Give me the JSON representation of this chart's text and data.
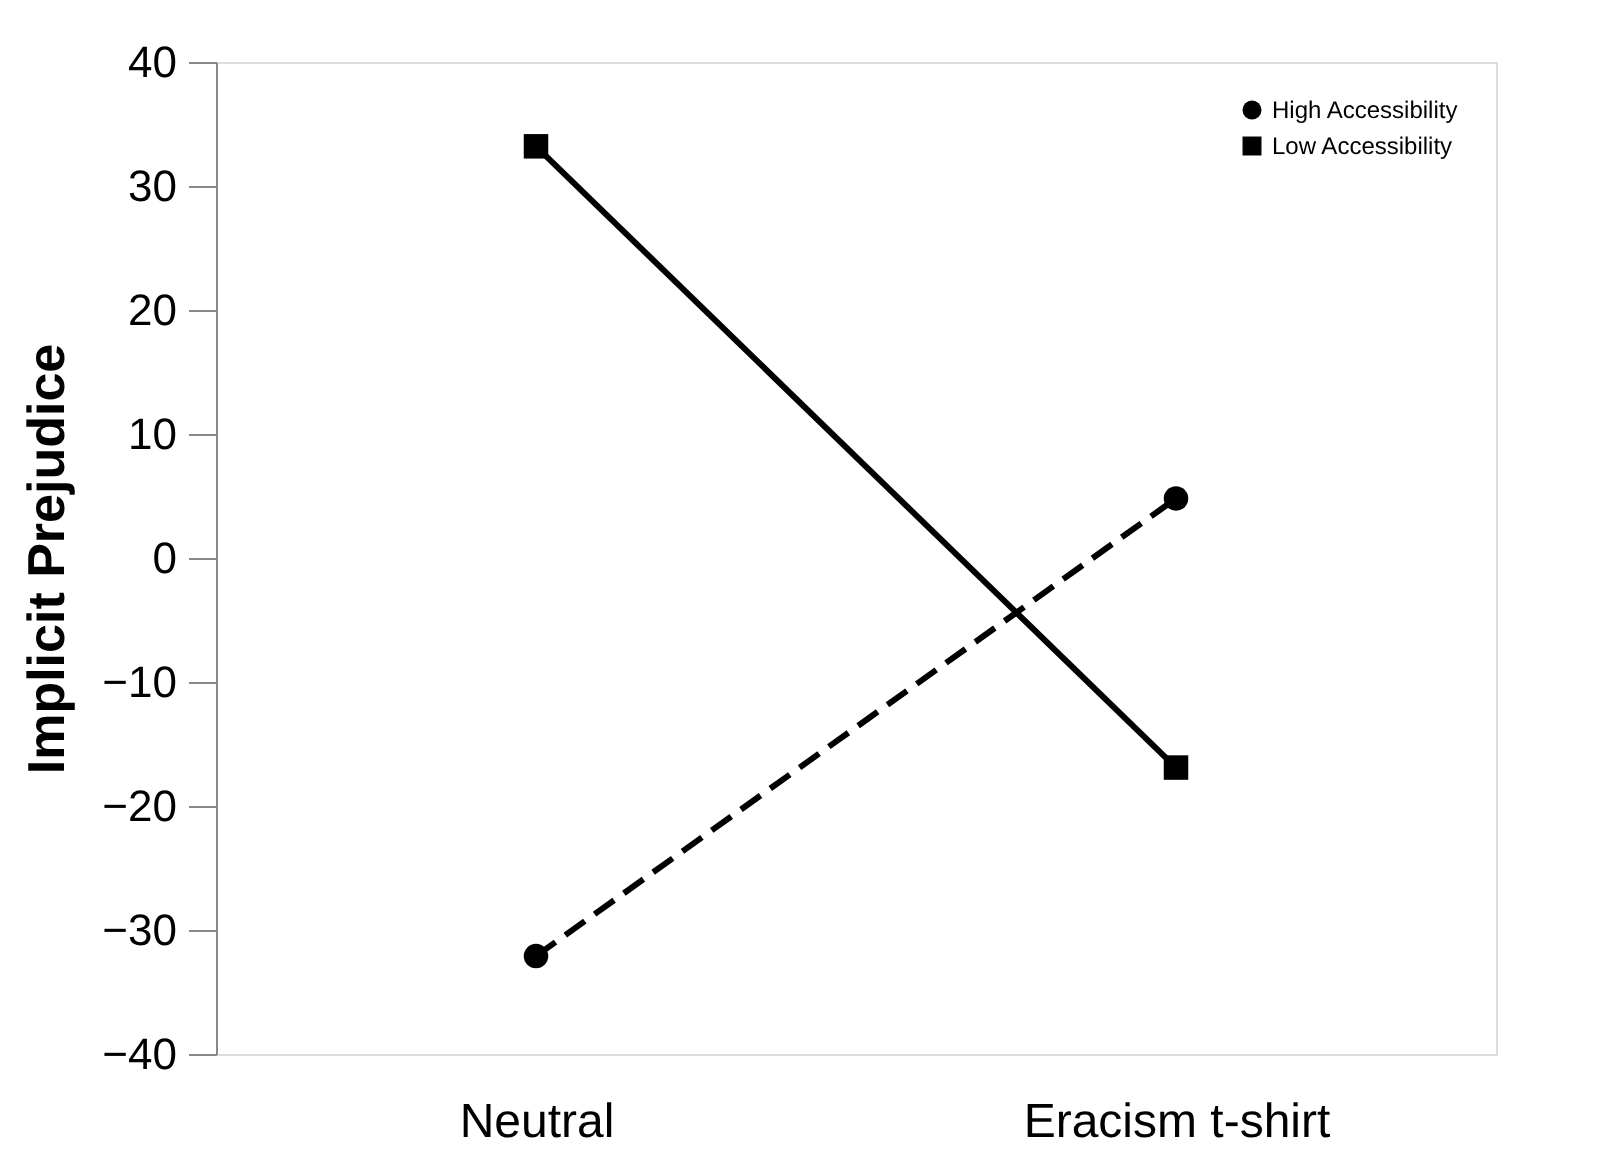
{
  "chart_data": {
    "type": "line",
    "ylabel": "Implicit Prejudice",
    "categories": [
      "Neutral",
      "Eracism t-shirt"
    ],
    "series": [
      {
        "name": "High Accessibility",
        "color": "#000000",
        "values": [
          -32.1,
          4.8
        ],
        "marker": "circle",
        "line_style": "dashed"
      },
      {
        "name": "Low Accessibility",
        "color": "#000000",
        "values": [
          33.2,
          -16.9
        ],
        "marker": "square",
        "line_style": "solid"
      }
    ],
    "ylim": [
      -40,
      40
    ],
    "yticks": [
      -40,
      -30,
      -20,
      -10,
      0,
      10,
      20,
      30,
      40
    ],
    "grid": false,
    "legend": "top right"
  }
}
